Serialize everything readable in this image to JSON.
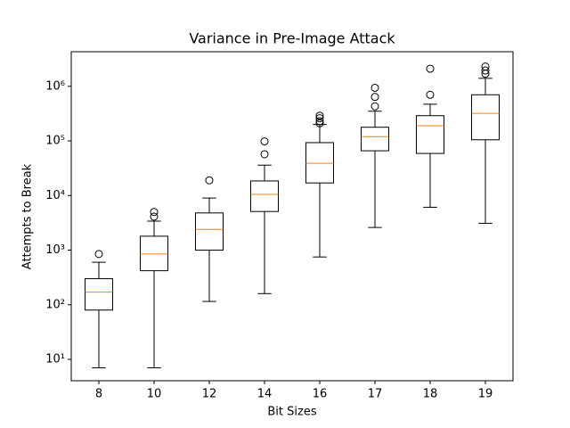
{
  "chart_data": {
    "type": "boxplot",
    "title": "Variance in Pre-Image Attack",
    "x_label": "Bit Sizes",
    "y_label": "Attempts to Break",
    "categories": [
      "8",
      "10",
      "12",
      "14",
      "16",
      "17",
      "18",
      "19"
    ],
    "boxes": [
      {
        "whislo": 7,
        "q1": 80,
        "med": 170,
        "q3": 300,
        "whishi": 600,
        "fliers": [
          850
        ]
      },
      {
        "whislo": 7,
        "q1": 420,
        "med": 850,
        "q3": 1800,
        "whishi": 3400,
        "fliers": [
          4100,
          5000
        ]
      },
      {
        "whislo": 115,
        "q1": 1000,
        "med": 2400,
        "q3": 4800,
        "whishi": 9000,
        "fliers": [
          19000
        ]
      },
      {
        "whislo": 160,
        "q1": 5100,
        "med": 10500,
        "q3": 18500,
        "whishi": 36000,
        "fliers": [
          57000,
          98000
        ]
      },
      {
        "whislo": 750,
        "q1": 17000,
        "med": 39000,
        "q3": 93000,
        "whishi": 200000,
        "fliers": [
          210000,
          230000,
          260000,
          290000
        ]
      },
      {
        "whislo": 2600,
        "q1": 66000,
        "med": 120000,
        "q3": 178000,
        "whishi": 350000,
        "fliers": [
          430000,
          640000,
          940000
        ]
      },
      {
        "whislo": 6100,
        "q1": 59000,
        "med": 190000,
        "q3": 290000,
        "whishi": 470000,
        "fliers": [
          700000,
          2100000
        ]
      },
      {
        "whislo": 3100,
        "q1": 105000,
        "med": 320000,
        "q3": 700000,
        "whishi": 1400000,
        "fliers": [
          1700000,
          1950000,
          2300000
        ]
      }
    ],
    "box_color": "#000000",
    "median_color": "#ff7f0e",
    "yscale": "log",
    "ylim": [
      4.06,
      4300000
    ],
    "yticks": [
      {
        "value": 10,
        "label": "10¹"
      },
      {
        "value": 100,
        "label": "10²"
      },
      {
        "value": 1000,
        "label": "10³"
      },
      {
        "value": 10000,
        "label": "10⁴"
      },
      {
        "value": 100000,
        "label": "10⁵"
      },
      {
        "value": 1000000,
        "label": "10⁶"
      }
    ]
  }
}
